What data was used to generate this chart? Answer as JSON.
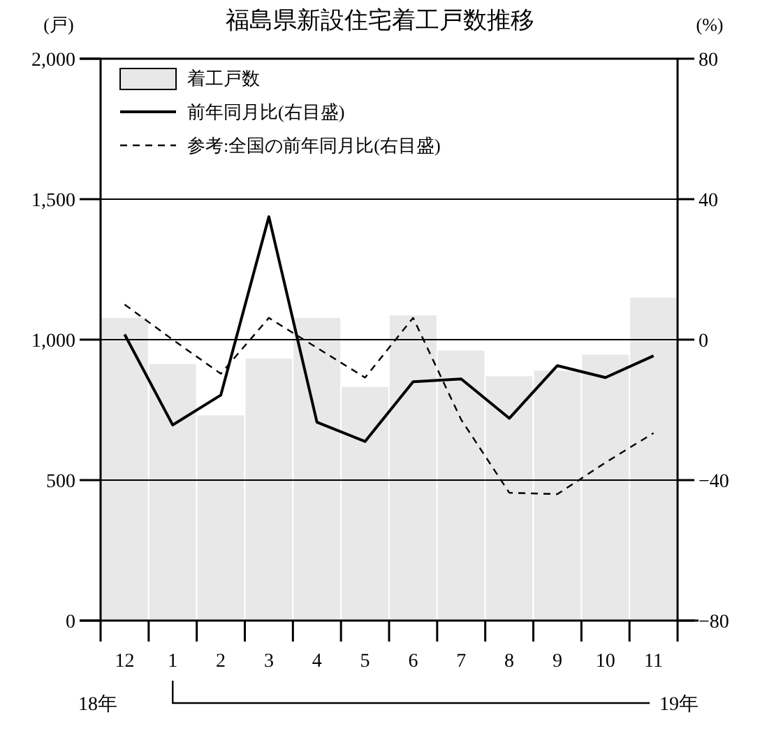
{
  "chart_data": {
    "type": "bar",
    "title": "福島県新設住宅着工戸数推移",
    "ylabel": "(戸)",
    "y2label": "(%)",
    "categories": [
      "12",
      "1",
      "2",
      "3",
      "4",
      "5",
      "6",
      "7",
      "8",
      "9",
      "10",
      "11"
    ],
    "series": [
      {
        "name": "着工戸数",
        "color": "#e8e8e8",
        "values": [
          1080,
          916,
          733,
          935,
          1080,
          834,
          1089,
          964,
          872,
          892,
          949,
          1152
        ]
      },
      {
        "name": "前年同月比(右目盛)",
        "type": "line",
        "axis": "y2",
        "color": "#000000",
        "line_style": "solid",
        "values": [
          1.5,
          -24.3,
          -15.8,
          35,
          -23.5,
          -29,
          -12,
          -11.2,
          -22.4,
          -7.4,
          -10.8,
          -4.6
        ]
      },
      {
        "name": "参考:全国の前年同月比(右目盛)",
        "type": "line",
        "axis": "y2",
        "color": "#000000",
        "line_style": "dashed",
        "values": [
          10,
          0,
          -9.7,
          6.2,
          -2.3,
          -10.8,
          6.2,
          -22.8,
          -43.6,
          -44,
          -35,
          -26.6
        ]
      }
    ],
    "ylim": [
      0,
      2000
    ],
    "yticks": [
      0,
      {
        "value": 500,
        "label": "500"
      },
      {
        "value": 1000,
        "label": "1,000"
      },
      {
        "value": 1500,
        "label": "1,500"
      },
      {
        "value": 2000,
        "label": "2,000"
      }
    ],
    "y2lim": [
      -80,
      80
    ],
    "y2ticks": [
      {
        "value": -80,
        "label": "−80"
      },
      {
        "value": -40,
        "label": "−40"
      },
      0,
      40,
      80
    ],
    "grid": "y",
    "legend": "top left",
    "marker": "none",
    "annotations": [
      "18年",
      "19年"
    ]
  }
}
